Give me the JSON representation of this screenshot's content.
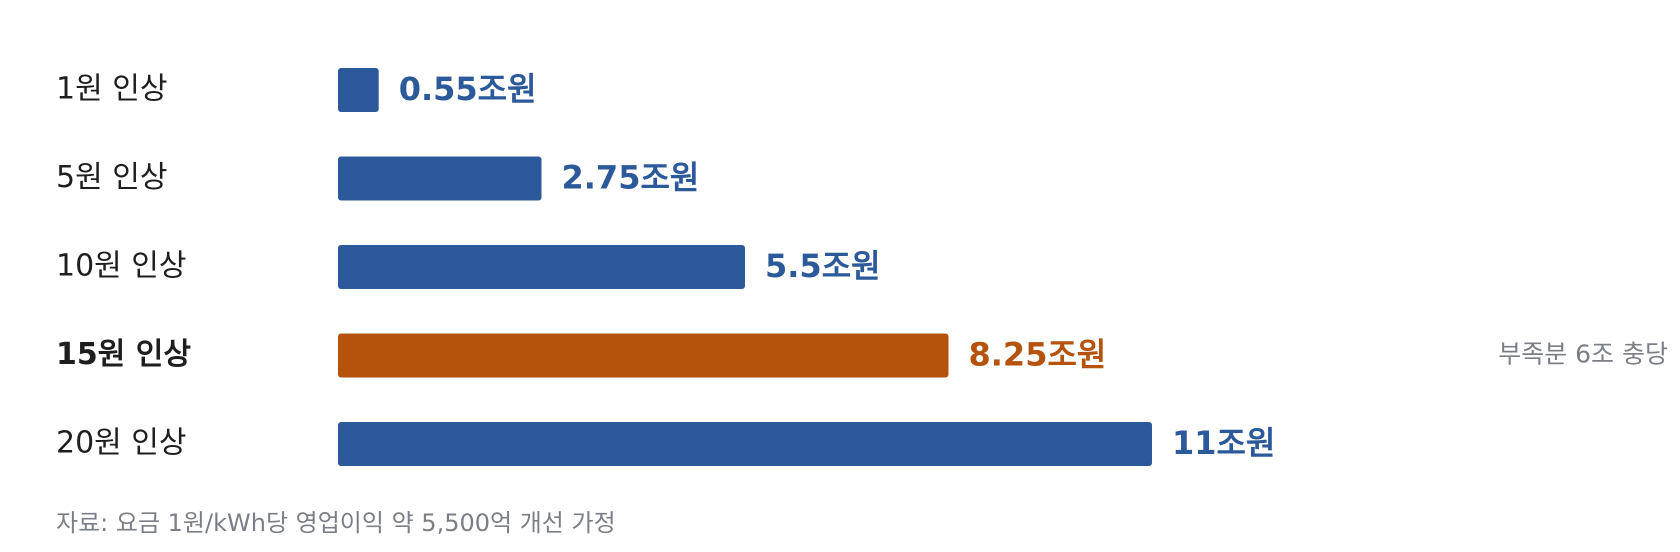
{
  "chart_data": {
    "type": "hbar",
    "categories": [
      "1원 인상",
      "5원 인상",
      "10원 인상",
      "15원 인상",
      "20원 인상"
    ],
    "values": [
      0.55,
      2.75,
      5.5,
      8.25,
      11
    ],
    "value_labels": [
      "0.55조원",
      "2.75조원",
      "5.5조원",
      "8.25조원",
      "11조원"
    ],
    "colors": [
      "#2c5999",
      "#2c5999",
      "#2c5999",
      "#b5530c",
      "#2c5999"
    ],
    "notes": [
      null,
      null,
      null,
      "부족분 6조 충당",
      null
    ],
    "footnote": "자료: 요금 1원/kWh당 영업이익 약 5,500억 개선 가정"
  }
}
